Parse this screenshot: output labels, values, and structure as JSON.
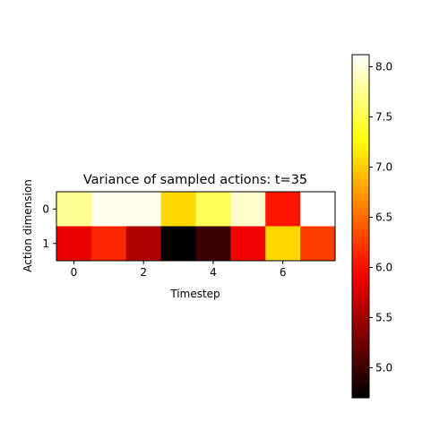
{
  "chart_data": {
    "type": "heatmap",
    "title": "Variance of sampled actions: t=35",
    "xlabel": "Timestep",
    "ylabel": "Action dimension",
    "x_ticks": [
      "0",
      "2",
      "4",
      "6"
    ],
    "y_ticks": [
      "0",
      "1"
    ],
    "colormap": "hot",
    "vmin": 4.7,
    "vmax": 8.12,
    "colorbar_ticks": [
      "5.0",
      "5.5",
      "6.0",
      "6.5",
      "7.0",
      "7.5",
      "8.0"
    ],
    "values": [
      [
        7.75,
        8.05,
        8.05,
        7.05,
        7.55,
        7.95,
        6.05,
        8.12
      ],
      [
        5.85,
        6.15,
        5.55,
        4.7,
        5.0,
        5.9,
        7.05,
        6.25
      ]
    ]
  }
}
